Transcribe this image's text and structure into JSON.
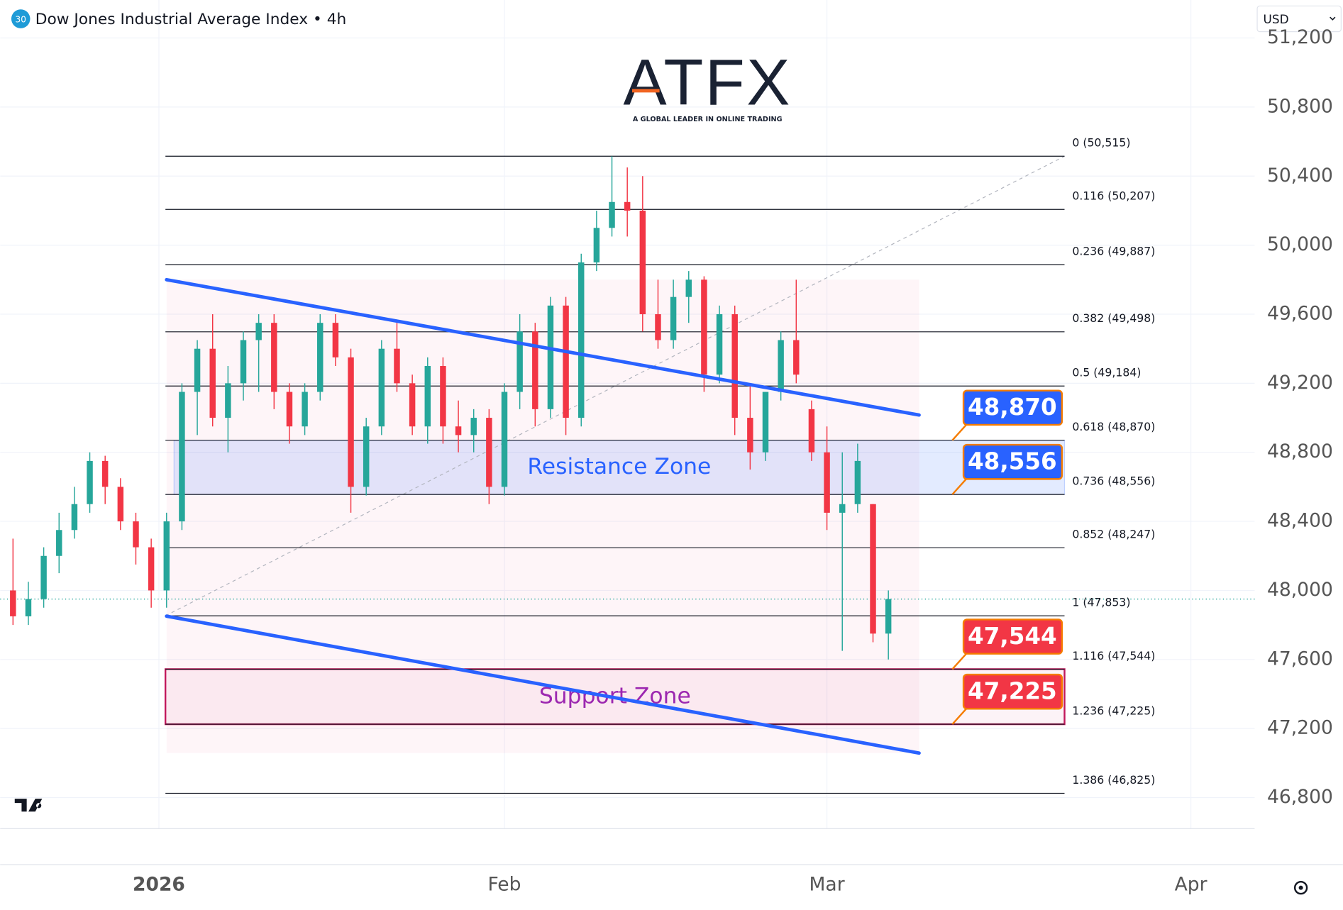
{
  "header": {
    "icon": "30",
    "title": "Dow Jones Industrial Average Index",
    "separator": "•",
    "interval": "4h",
    "currency": "USD"
  },
  "logo": {
    "name": "ATFX",
    "tagline": "A GLOBAL LEADER IN ONLINE TRADING"
  },
  "chart_data": {
    "type": "candlestick",
    "x": [
      1,
      3,
      5,
      7,
      9,
      11,
      13,
      15,
      17,
      19,
      21,
      23,
      25,
      27,
      29,
      31,
      33,
      35,
      37,
      39,
      41,
      43,
      45,
      47,
      49,
      51,
      53,
      55,
      57,
      59,
      61,
      63,
      65,
      67,
      69,
      71,
      73,
      75,
      77,
      79,
      81,
      83,
      85,
      87,
      89,
      91,
      93,
      95,
      97,
      99,
      101,
      103,
      105,
      107,
      109,
      111,
      113,
      115
    ],
    "open": [
      48000,
      47850,
      47950,
      48200,
      48350,
      48500,
      48750,
      48600,
      48400,
      48250,
      48000,
      48400,
      49150,
      49400,
      49000,
      49200,
      49450,
      49550,
      49150,
      48950,
      49150,
      49550,
      49350,
      48600,
      48950,
      49400,
      49200,
      48950,
      49300,
      48950,
      48900,
      49000,
      48600,
      49150,
      49500,
      49050,
      49650,
      49000,
      49900,
      50100,
      50250,
      50200,
      49600,
      49450,
      49700,
      49800,
      49250,
      49600,
      49000,
      48800,
      49150,
      49450,
      49050,
      48800,
      48450,
      48500,
      48500,
      47750
    ],
    "high": [
      48300,
      48050,
      48250,
      48450,
      48600,
      48800,
      48780,
      48650,
      48450,
      48300,
      48450,
      49200,
      49450,
      49600,
      49300,
      49500,
      49600,
      49600,
      49200,
      49200,
      49600,
      49600,
      49400,
      49000,
      49450,
      49550,
      49250,
      49350,
      49350,
      49100,
      49050,
      49050,
      49200,
      49600,
      49550,
      49700,
      49700,
      49950,
      50200,
      50515,
      50450,
      50400,
      49800,
      49800,
      49850,
      49820,
      49650,
      49650,
      49200,
      49150,
      49500,
      49800,
      49100,
      48950,
      48800,
      48850,
      48500,
      48000
    ],
    "low": [
      47800,
      47800,
      47900,
      48100,
      48300,
      48450,
      48500,
      48350,
      48150,
      47900,
      47900,
      48350,
      48900,
      48950,
      48800,
      49100,
      49150,
      49050,
      48850,
      48900,
      49100,
      49300,
      48450,
      48550,
      48900,
      49150,
      48900,
      48850,
      48850,
      48800,
      48800,
      48500,
      48550,
      49050,
      48950,
      49000,
      48900,
      48950,
      49850,
      50050,
      50050,
      49500,
      49400,
      49400,
      49550,
      49150,
      49200,
      48900,
      48700,
      48750,
      49100,
      49200,
      48750,
      48350,
      47650,
      48450,
      47700,
      47600
    ],
    "close": [
      47850,
      47950,
      48200,
      48350,
      48500,
      48750,
      48600,
      48400,
      48250,
      48000,
      48400,
      49150,
      49400,
      49000,
      49200,
      49450,
      49550,
      49150,
      48950,
      49150,
      49550,
      49350,
      48600,
      48950,
      49400,
      49200,
      48950,
      49300,
      48950,
      48900,
      49000,
      48600,
      49150,
      49500,
      49050,
      49650,
      49000,
      49900,
      50100,
      50250,
      50200,
      49600,
      49450,
      49700,
      49800,
      49250,
      49600,
      49000,
      48800,
      49150,
      49450,
      49250,
      48800,
      48450,
      48500,
      48750,
      47750,
      47950
    ],
    "up_color": "#26a69a",
    "down_color": "#f23645",
    "xlim": [
      -0.67,
      162.7
    ],
    "xticks": [
      {
        "value": 20,
        "label": "2026"
      },
      {
        "value": 65,
        "label": "Feb"
      },
      {
        "value": 107,
        "label": "Mar"
      },
      {
        "value": 154.4,
        "label": "Apr"
      }
    ],
    "ylim": [
      46620,
      51420
    ],
    "yticks": [
      {
        "value": 46800,
        "label": "46,800"
      },
      {
        "value": 47200,
        "label": "47,200"
      },
      {
        "value": 47600,
        "label": "47,600"
      },
      {
        "value": 48000,
        "label": "48,000"
      },
      {
        "value": 48400,
        "label": "48,400"
      },
      {
        "value": 48800,
        "label": "48,800"
      },
      {
        "value": 49200,
        "label": "49,200"
      },
      {
        "value": 49600,
        "label": "49,600"
      },
      {
        "value": 50000,
        "label": "50,000"
      },
      {
        "value": 50400,
        "label": "50,400"
      },
      {
        "value": 50800,
        "label": "50,800"
      },
      {
        "value": 51200,
        "label": "51,200"
      }
    ],
    "grid": true,
    "last_price_line": true,
    "fib_levels": [
      {
        "label": "0 (50,515)",
        "value": 50515
      },
      {
        "label": "0.116 (50,207)",
        "value": 50207
      },
      {
        "label": "0.236 (49,887)",
        "value": 49887
      },
      {
        "label": "0.382 (49,498)",
        "value": 49498
      },
      {
        "label": "0.5 (49,184)",
        "value": 49184
      },
      {
        "label": "0.618 (48,870)",
        "value": 48870
      },
      {
        "label": "0.736 (48,556)",
        "value": 48556
      },
      {
        "label": "0.852 (48,247)",
        "value": 48247
      },
      {
        "label": "1 (47,853)",
        "value": 47853
      },
      {
        "label": "1.116 (47,544)",
        "value": 47544
      },
      {
        "label": "1.236 (47,225)",
        "value": 47225
      },
      {
        "label": "1.386 (46,825)",
        "value": 46825
      }
    ],
    "zones": [
      {
        "name": "Resistance Zone",
        "low": 48556,
        "high": 48870,
        "color": "#2962ff"
      },
      {
        "name": "Support Zone",
        "low": 47225,
        "high": 47544,
        "color": "#c2185b"
      }
    ],
    "price_tags": [
      {
        "value": 48870,
        "label": "48,870",
        "color": "#2962ff"
      },
      {
        "value": 48556,
        "label": "48,556",
        "color": "#2962ff"
      },
      {
        "value": 47544,
        "label": "47,544",
        "color": "#f23645"
      },
      {
        "value": 47225,
        "label": "47,225",
        "color": "#f23645"
      }
    ],
    "channel": {
      "color": "#2962ff",
      "upper": [
        [
          21,
          49800
        ],
        [
          119,
          49016
        ]
      ],
      "lower": [
        [
          21,
          47851
        ],
        [
          119,
          47058
        ]
      ]
    }
  }
}
